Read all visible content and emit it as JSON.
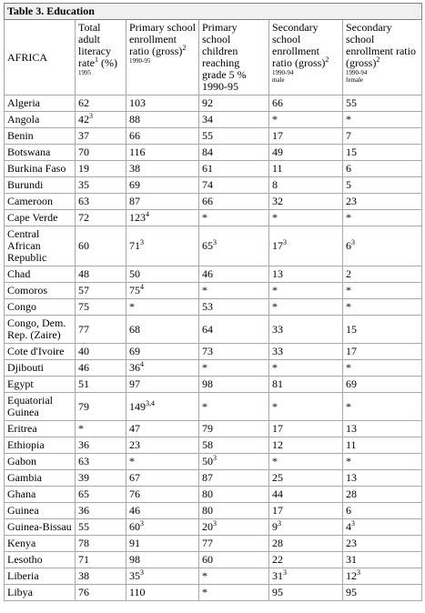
{
  "title": "Table 3. Education",
  "table": {
    "headers": [
      {
        "label": "AFRICA"
      },
      {
        "label": "Total adult literacy rate",
        "sup": "1",
        "after": " (%)",
        "note": "1995"
      },
      {
        "label": "Primary school enrollment ratio (gross)",
        "sup": "2",
        "note": "1990-95"
      },
      {
        "label": "Primary school children reaching grade 5 % 1990-95"
      },
      {
        "label": "Secondary school enrollment ratio (gross)",
        "sup": "2",
        "note": "1990-94",
        "note2": "male"
      },
      {
        "label": "Secondary school enrollment ratio (gross)",
        "sup": "2",
        "note": "1990-94",
        "note2": "female"
      }
    ],
    "rows": [
      [
        "Algeria",
        "62",
        "103",
        "92",
        "66",
        "55"
      ],
      [
        "Angola",
        {
          "value": "42",
          "sup": "3"
        },
        "88",
        "34",
        "*",
        "*"
      ],
      [
        "Benin",
        "37",
        "66",
        "55",
        "17",
        "7"
      ],
      [
        "Botswana",
        "70",
        "116",
        "84",
        "49",
        "15"
      ],
      [
        "Burkina Faso",
        "19",
        "38",
        "61",
        "11",
        "6"
      ],
      [
        "Burundi",
        "35",
        "69",
        "74",
        "8",
        "5"
      ],
      [
        "Cameroon",
        "63",
        "87",
        "66",
        "32",
        "23"
      ],
      [
        "Cape Verde",
        "72",
        {
          "value": "123",
          "sup": "4"
        },
        "*",
        "*",
        "*"
      ],
      [
        "Central African Republic",
        "60",
        {
          "value": "71",
          "sup": "3"
        },
        {
          "value": "65",
          "sup": "3"
        },
        {
          "value": "17",
          "sup": "3"
        },
        {
          "value": "6",
          "sup": "3"
        }
      ],
      [
        "Chad",
        "48",
        "50",
        "46",
        "13",
        "2"
      ],
      [
        "Comoros",
        "57",
        {
          "value": "75",
          "sup": "4"
        },
        "*",
        "*",
        "*"
      ],
      [
        "Congo",
        "75",
        "*",
        "53",
        "*",
        "*"
      ],
      [
        "Congo, Dem. Rep. (Zaire)",
        "77",
        "68",
        "64",
        "33",
        "15"
      ],
      [
        "Cote d'Ivoire",
        "40",
        "69",
        "73",
        "33",
        "17"
      ],
      [
        "Djibouti",
        "46",
        {
          "value": "36",
          "sup": "4"
        },
        "*",
        "*",
        "*"
      ],
      [
        "Egypt",
        "51",
        "97",
        "98",
        "81",
        "69"
      ],
      [
        "Equatorial Guinea",
        "79",
        {
          "value": "149",
          "sup": "3,4"
        },
        "*",
        "*",
        "*"
      ],
      [
        "Eritrea",
        "*",
        "47",
        "79",
        "17",
        "13"
      ],
      [
        "Ethiopia",
        "36",
        "23",
        "58",
        "12",
        "11"
      ],
      [
        "Gabon",
        "63",
        "*",
        {
          "value": "50",
          "sup": "3"
        },
        "*",
        "*"
      ],
      [
        "Gambia",
        "39",
        "67",
        "87",
        "25",
        "13"
      ],
      [
        "Ghana",
        "65",
        "76",
        "80",
        "44",
        "28"
      ],
      [
        "Guinea",
        "36",
        "46",
        "80",
        "17",
        "6"
      ],
      [
        "Guinea-Bissau",
        "55",
        {
          "value": "60",
          "sup": "3"
        },
        {
          "value": "20",
          "sup": "3"
        },
        {
          "value": "9",
          "sup": "3"
        },
        {
          "value": "4",
          "sup": "3"
        }
      ],
      [
        "Kenya",
        "78",
        "91",
        "77",
        "28",
        "23"
      ],
      [
        "Lesotho",
        "71",
        "98",
        "60",
        "22",
        "31"
      ],
      [
        "Liberia",
        "38",
        {
          "value": "35",
          "sup": "3"
        },
        "*",
        {
          "value": "31",
          "sup": "3"
        },
        {
          "value": "12",
          "sup": "3"
        }
      ],
      [
        "Libya",
        "76",
        "110",
        "*",
        "95",
        "95"
      ]
    ]
  }
}
